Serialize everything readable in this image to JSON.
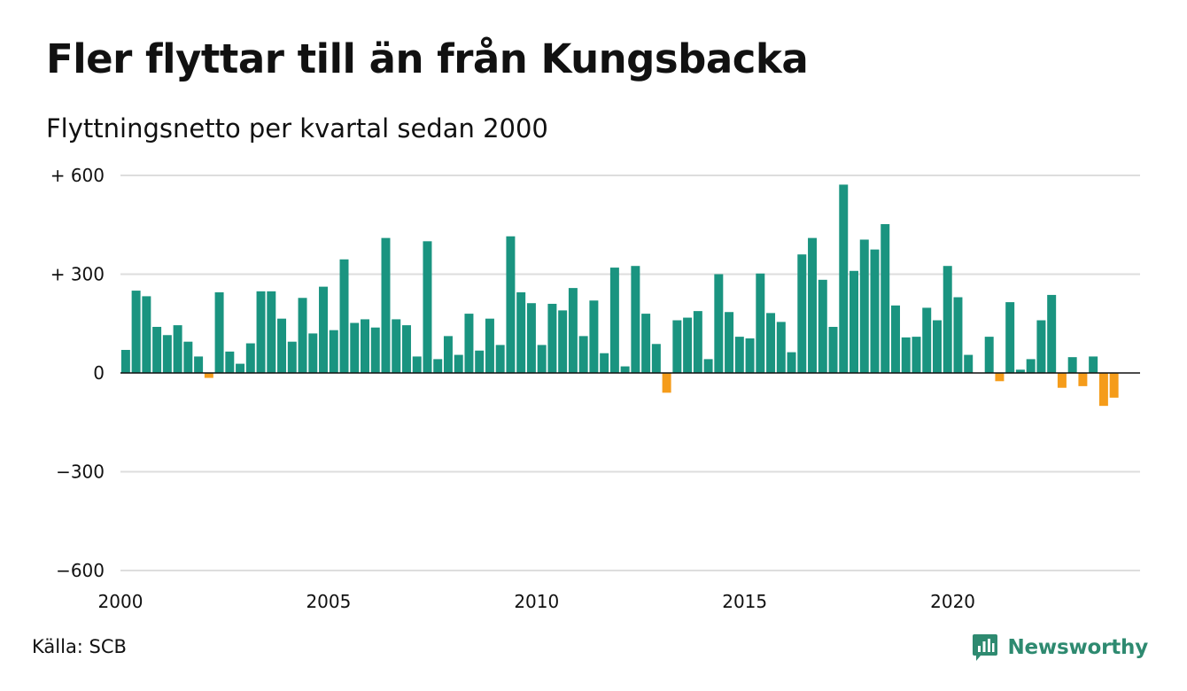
{
  "title": "Fler flyttar till än från Kungsbacka",
  "subtitle": "Flyttningsnetto per kvartal sedan 2000",
  "source": "Källa: SCB",
  "brand": {
    "name": "Newsworthy",
    "icon": "newsworthy-logo-icon"
  },
  "colors": {
    "positive": "#1a9480",
    "negative": "#f59c1a",
    "grid": "#dddddd",
    "zero": "#111111",
    "brand": "#2e8a70"
  },
  "chart_data": {
    "type": "bar",
    "title": "Fler flyttar till än från Kungsbacka",
    "subtitle": "Flyttningsnetto per kvartal sedan 2000",
    "xlabel": "",
    "ylabel": "",
    "ylim": [
      -600,
      600
    ],
    "xlim": [
      2000,
      2024.5
    ],
    "y_ticks": [
      600,
      300,
      0,
      -300,
      -600
    ],
    "y_tick_labels": [
      "+ 600",
      "+ 300",
      "0",
      "−300",
      "−600"
    ],
    "x_ticks": [
      2000,
      2005,
      2010,
      2015,
      2020
    ],
    "x_tick_labels": [
      "2000",
      "2005",
      "2010",
      "2015",
      "2020"
    ],
    "grid": true,
    "x_start": "2000-Q1",
    "periods_per_year": 4,
    "values": [
      70,
      250,
      233,
      140,
      115,
      145,
      95,
      50,
      -15,
      245,
      65,
      28,
      90,
      248,
      248,
      165,
      95,
      228,
      120,
      262,
      130,
      345,
      152,
      163,
      138,
      410,
      163,
      145,
      50,
      400,
      42,
      112,
      55,
      180,
      68,
      165,
      85,
      415,
      245,
      212,
      85,
      210,
      190,
      258,
      112,
      220,
      60,
      320,
      20,
      325,
      180,
      88,
      -60,
      160,
      168,
      188,
      42,
      300,
      185,
      110,
      105,
      302,
      182,
      155,
      63,
      360,
      410,
      283,
      140,
      572,
      310,
      405,
      375,
      452,
      205,
      108,
      110,
      198,
      160,
      325,
      230,
      55,
      0,
      110,
      -25,
      215,
      10,
      42,
      160,
      237,
      -45,
      48,
      -40,
      50,
      -100,
      -75
    ]
  }
}
